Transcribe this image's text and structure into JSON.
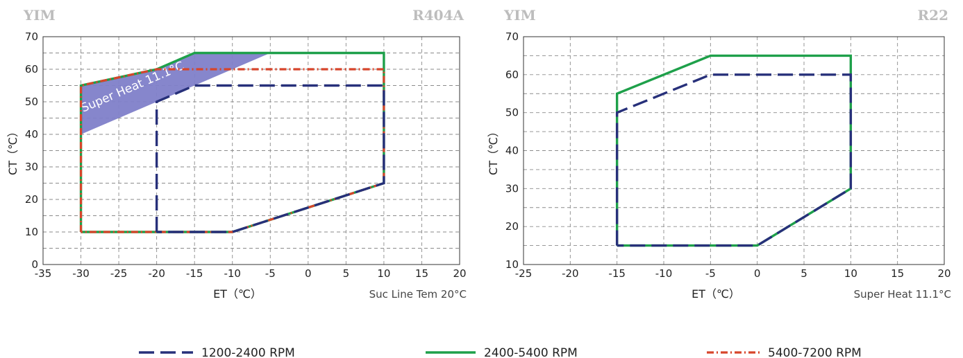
{
  "chart_data": [
    {
      "type": "line",
      "brand": "YIM",
      "refrigerant": "R404A",
      "xlabel": "ET（℃）",
      "ylabel": "CT（℃）",
      "note": "Suc Line Tem 20°C",
      "xlim": [
        -35,
        20
      ],
      "ylim": [
        0,
        70
      ],
      "xticks": [
        -35,
        -30,
        -25,
        -20,
        -15,
        -10,
        -5,
        0,
        5,
        10,
        15,
        20
      ],
      "yticks": [
        0,
        10,
        20,
        30,
        40,
        50,
        60,
        70
      ],
      "grid": true,
      "shaded_region": {
        "label": "Super Heat 11.1°C",
        "color": "#7f7fc9",
        "points": [
          [
            -30,
            40
          ],
          [
            -30,
            55
          ],
          [
            -20,
            60
          ],
          [
            -15,
            65
          ],
          [
            -5,
            65
          ]
        ]
      },
      "series": [
        {
          "name": "2400-5400 RPM",
          "color": "#1ea04a",
          "style": "solid",
          "points": [
            [
              -30,
              10
            ],
            [
              -30,
              55
            ],
            [
              -20,
              60
            ],
            [
              -15,
              65
            ],
            [
              10,
              65
            ],
            [
              10,
              25
            ],
            [
              -10,
              10
            ],
            [
              -30,
              10
            ]
          ]
        },
        {
          "name": "5400-7200 RPM",
          "color": "#d7452b",
          "style": "dashdot",
          "points": [
            [
              -30,
              10
            ],
            [
              -30,
              55
            ],
            [
              -20,
              60
            ],
            [
              10,
              60
            ],
            [
              10,
              25
            ],
            [
              -10,
              10
            ],
            [
              -30,
              10
            ]
          ]
        },
        {
          "name": "1200-2400 RPM",
          "color": "#27307a",
          "style": "dashed",
          "points": [
            [
              -20,
              10
            ],
            [
              -20,
              50
            ],
            [
              -15,
              55
            ],
            [
              10,
              55
            ],
            [
              10,
              25
            ],
            [
              -10,
              10
            ],
            [
              -20,
              10
            ]
          ]
        }
      ]
    },
    {
      "type": "line",
      "brand": "YIM",
      "refrigerant": "R22",
      "xlabel": "ET（℃）",
      "ylabel": "CT（℃）",
      "note": "Super Heat 11.1°C",
      "xlim": [
        -25,
        20
      ],
      "ylim": [
        10,
        70
      ],
      "xticks": [
        -25,
        -20,
        -15,
        -10,
        -5,
        0,
        5,
        10,
        15,
        20
      ],
      "yticks": [
        10,
        20,
        30,
        40,
        50,
        60,
        70
      ],
      "grid": true,
      "series": [
        {
          "name": "2400-5400 RPM",
          "color": "#1ea04a",
          "style": "solid",
          "points": [
            [
              -15,
              15
            ],
            [
              -15,
              55
            ],
            [
              -5,
              65
            ],
            [
              10,
              65
            ],
            [
              10,
              30
            ],
            [
              0,
              15
            ],
            [
              -15,
              15
            ]
          ]
        },
        {
          "name": "1200-2400 RPM",
          "color": "#27307a",
          "style": "dashed",
          "points": [
            [
              -15,
              15
            ],
            [
              -15,
              50
            ],
            [
              -5,
              60
            ],
            [
              10,
              60
            ],
            [
              10,
              30
            ],
            [
              0,
              15
            ],
            [
              -15,
              15
            ]
          ]
        }
      ]
    }
  ],
  "legend": [
    {
      "label": "1200-2400 RPM",
      "color": "#27307a",
      "style": "dashed"
    },
    {
      "label": "2400-5400 RPM",
      "color": "#1ea04a",
      "style": "solid"
    },
    {
      "label": "5400-7200 RPM",
      "color": "#d7452b",
      "style": "dashdot"
    }
  ]
}
